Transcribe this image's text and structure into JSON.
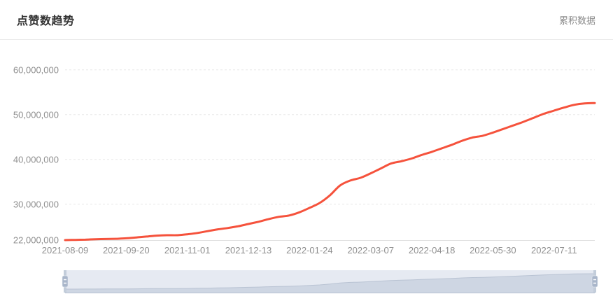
{
  "header": {
    "title": "点赞数趋势",
    "mode_label": "累积数据"
  },
  "colors": {
    "line": "#f5523c",
    "axis_label": "#8f8f8f",
    "grid_line": "#e8e8e8",
    "axis_line": "#e0e0e0",
    "title": "#333333",
    "mode_label": "#8a8a8a",
    "divider": "#ebebeb",
    "dz_track": "#e6eaf2",
    "dz_shadow": "#ced6e3",
    "dz_shadow_line": "#b9c3d3",
    "dz_handle_bar": "#c3cdda",
    "dz_handle_knob": "#a9b6ca",
    "dz_handle_grip": "#ffffff"
  },
  "chart_data": {
    "type": "line",
    "title": "点赞数趋势",
    "subtitle": "累积数据",
    "xlabel": "",
    "ylabel": "",
    "x": [
      "2021-08-09",
      "2021-08-16",
      "2021-08-23",
      "2021-08-30",
      "2021-09-06",
      "2021-09-13",
      "2021-09-20",
      "2021-09-27",
      "2021-10-04",
      "2021-10-11",
      "2021-10-18",
      "2021-10-25",
      "2021-11-01",
      "2021-11-08",
      "2021-11-15",
      "2021-11-22",
      "2021-11-29",
      "2021-12-06",
      "2021-12-13",
      "2021-12-20",
      "2021-12-27",
      "2022-01-03",
      "2022-01-10",
      "2022-01-17",
      "2022-01-24",
      "2022-01-31",
      "2022-02-07",
      "2022-02-14",
      "2022-02-21",
      "2022-02-28",
      "2022-03-07",
      "2022-03-14",
      "2022-03-21",
      "2022-03-28",
      "2022-04-04",
      "2022-04-11",
      "2022-04-18",
      "2022-04-25",
      "2022-05-02",
      "2022-05-09",
      "2022-05-16",
      "2022-05-23",
      "2022-05-30",
      "2022-06-06",
      "2022-06-13",
      "2022-06-20",
      "2022-06-27",
      "2022-07-04",
      "2022-07-11",
      "2022-07-18",
      "2022-07-25",
      "2022-08-01",
      "2022-08-08"
    ],
    "values": [
      22000000,
      22050000,
      22100000,
      22200000,
      22250000,
      22300000,
      22400000,
      22600000,
      22800000,
      23000000,
      23100000,
      23100000,
      23300000,
      23600000,
      24000000,
      24400000,
      24700000,
      25100000,
      25600000,
      26100000,
      26700000,
      27200000,
      27500000,
      28200000,
      29200000,
      30300000,
      32000000,
      34200000,
      35300000,
      35900000,
      36900000,
      38000000,
      39100000,
      39600000,
      40200000,
      41000000,
      41700000,
      42500000,
      43300000,
      44200000,
      44900000,
      45300000,
      46000000,
      46800000,
      47600000,
      48400000,
      49300000,
      50200000,
      50900000,
      51600000,
      52200000,
      52500000,
      52600000
    ],
    "x_label_every": 6,
    "x_tick_labels": [
      "2021-08-09",
      "2021-09-20",
      "2021-11-01",
      "2021-12-13",
      "2022-01-24",
      "2022-03-07",
      "2022-04-18",
      "2022-05-30",
      "2022-07-11"
    ],
    "y_ticks": [
      22000000,
      30000000,
      40000000,
      50000000,
      60000000
    ],
    "y_tick_labels": [
      "22,000,000",
      "30,000,000",
      "40,000,000",
      "50,000,000",
      "60,000,000"
    ],
    "ylim": [
      22000000,
      60000000
    ],
    "grid": "dashed-horizontal",
    "legend": "none",
    "line_smooth": true,
    "datazoom": {
      "enabled": true,
      "range_start_percent": 0,
      "range_end_percent": 100
    }
  }
}
